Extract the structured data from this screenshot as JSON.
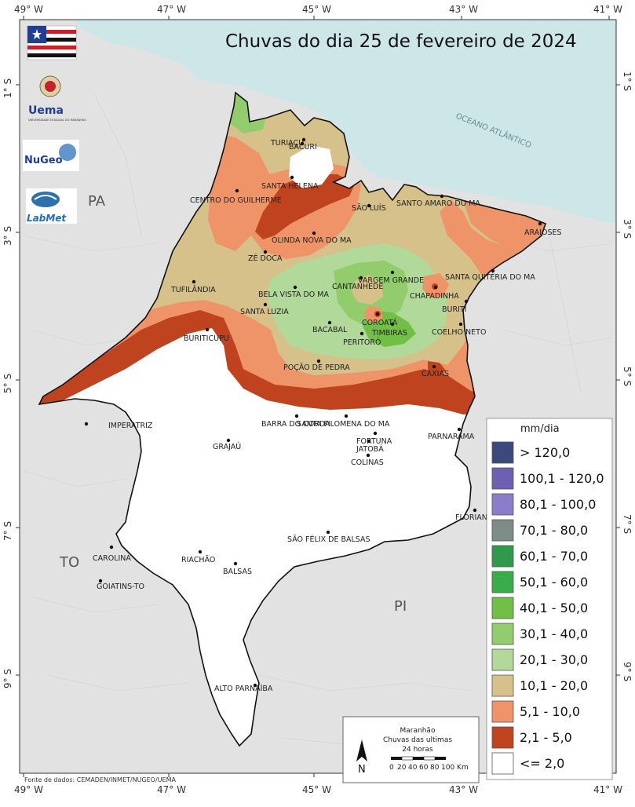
{
  "title": "Chuvas do dia 25 de fevereiro de 2024",
  "axes": {
    "top_longitudes": [
      "49° W",
      "47° W",
      "45° W",
      "43° W",
      "41° W"
    ],
    "bottom_longitudes": [
      "49° W",
      "47° W",
      "45° W",
      "43° W",
      "41° W"
    ],
    "left_latitudes": [
      "1° S",
      "3° S",
      "5° S",
      "7° S",
      "9° S"
    ],
    "right_latitudes": [
      "1° S",
      "3° S",
      "5° S",
      "7° S",
      "9° S"
    ]
  },
  "regions": {
    "pa": "PA",
    "to": "TO",
    "pi": "PI",
    "ocean": "OCEANO ATLÂNTICO"
  },
  "cities": [
    {
      "name": "TURIAÇU"
    },
    {
      "name": "BACURI"
    },
    {
      "name": "SANTA HELENA"
    },
    {
      "name": "CENTRO DO GUILHERME"
    },
    {
      "name": "SÃO LUÍS"
    },
    {
      "name": "SANTO AMARO DO MA"
    },
    {
      "name": "ARAIOSES"
    },
    {
      "name": "OLINDA NOVA DO MA"
    },
    {
      "name": "ZÉ DOCA"
    },
    {
      "name": "VARGEM GRANDE"
    },
    {
      "name": "SANTA QUITÉRIA DO MA"
    },
    {
      "name": "CANTANHEDE"
    },
    {
      "name": "CHAPADINHA"
    },
    {
      "name": "TUFILÂNDIA"
    },
    {
      "name": "BELA VISTA DO MA"
    },
    {
      "name": "BURITI"
    },
    {
      "name": "SANTA LUZIA"
    },
    {
      "name": "COROATÁ"
    },
    {
      "name": "BACABAL"
    },
    {
      "name": "TIMBIRAS"
    },
    {
      "name": "COELHO NETO"
    },
    {
      "name": "BURITICUPU"
    },
    {
      "name": "PERITORÓ"
    },
    {
      "name": "POÇÃO DE PEDRA"
    },
    {
      "name": "CAXIAS"
    },
    {
      "name": "BARRA DO CORDA"
    },
    {
      "name": "SANTA FILOMENA DO MA"
    },
    {
      "name": "IMPERATRIZ"
    },
    {
      "name": "FORTUNA"
    },
    {
      "name": "PARNARAMA"
    },
    {
      "name": "GRAJAÚ"
    },
    {
      "name": "JATOBÁ"
    },
    {
      "name": "COLINAS"
    },
    {
      "name": "FLORIANO-PI"
    },
    {
      "name": "SÃO FÉLIX DE BALSAS"
    },
    {
      "name": "CAROLINA"
    },
    {
      "name": "RIACHÃO"
    },
    {
      "name": "BALSAS"
    },
    {
      "name": "GOIATINS-TO"
    },
    {
      "name": "ALTO PARNAÍBA"
    }
  ],
  "legend": {
    "title": "mm/dia",
    "items": [
      {
        "label": "> 120,0",
        "color": "#3a4a7a"
      },
      {
        "label": "100,1 - 120,0",
        "color": "#6f5fb0"
      },
      {
        "label": "80,1 - 100,0",
        "color": "#8b7dc9"
      },
      {
        "label": "70,1 - 80,0",
        "color": "#7c8c87"
      },
      {
        "label": "60,1 - 70,0",
        "color": "#2f9a4c"
      },
      {
        "label": "50,1 - 60,0",
        "color": "#38ad4a"
      },
      {
        "label": "40,1 - 50,0",
        "color": "#72bf45"
      },
      {
        "label": "30,1 - 40,0",
        "color": "#92cc6d"
      },
      {
        "label": "20,1 - 30,0",
        "color": "#b1d99a"
      },
      {
        "label": "10,1 - 20,0",
        "color": "#d6c18a"
      },
      {
        "label": "5,1 - 10,0",
        "color": "#ef9468"
      },
      {
        "label": "2,1 - 5,0",
        "color": "#c0431f"
      },
      {
        "label": "<= 2,0",
        "color": "#ffffff"
      }
    ]
  },
  "inset": {
    "line1": "Maranhão",
    "line2": "Chuvas das ultimas",
    "line3": "24 horas",
    "north": "N",
    "scale_ticks": [
      "0",
      "20",
      "40",
      "60",
      "80",
      "100 Km"
    ]
  },
  "logos": {
    "uema": "Uema",
    "uema_sub": "UNIVERSIDADE ESTADUAL DO MARANHÃO",
    "nugeo": "NuGeo",
    "labmet": "LabMet"
  },
  "source": "Fonte de dados: CEMADEN/INMET/NUGEO/UEMA",
  "colors": {
    "ocean": "#cde6e8",
    "land_outside": "#e2e2e2",
    "state_border": "#111111"
  }
}
